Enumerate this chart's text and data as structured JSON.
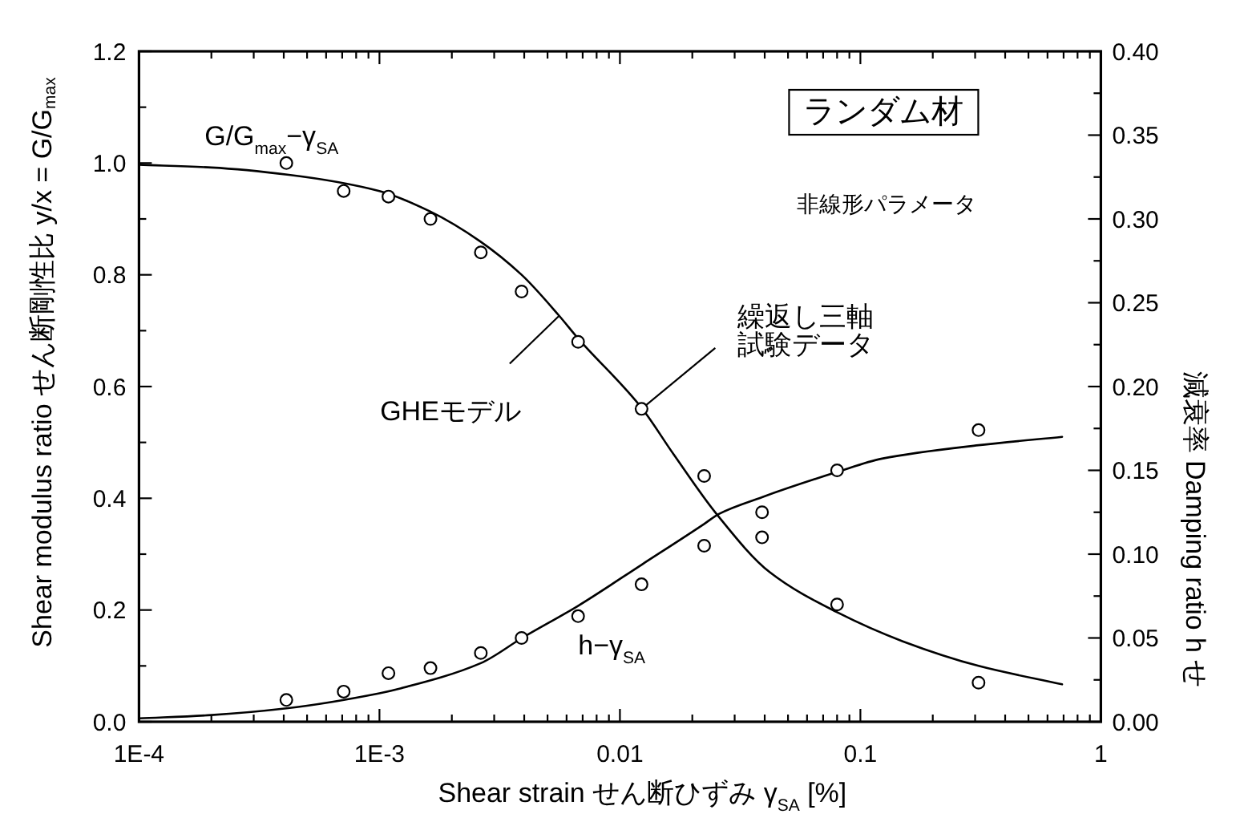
{
  "chart_data": {
    "type": "scatter",
    "title": "ランダム材",
    "subtitle": "非線形パラメータ",
    "xlabel": "Shear strain せん断ひずみ γ$_{SA}$ [%]",
    "ylabel": "Shear modulus ratio せん断剛性比 y/x = G/G$_{max}$",
    "y2label": "減衰率 Damping ratio h せ",
    "log": "x",
    "xlim": [
      0.0001,
      1
    ],
    "xticks": [
      {
        "value": 0.0001,
        "label": "1E-4"
      },
      {
        "value": 0.0002,
        "label": null
      },
      {
        "value": 0.0003,
        "label": null
      },
      {
        "value": 0.0004,
        "label": null
      },
      {
        "value": 0.0005,
        "label": null
      },
      {
        "value": 0.0006,
        "label": null
      },
      {
        "value": 0.0007,
        "label": null
      },
      {
        "value": 0.0008,
        "label": null
      },
      {
        "value": 0.0009,
        "label": null
      },
      {
        "value": 0.001,
        "label": "1E-3"
      },
      {
        "value": 0.002,
        "label": null
      },
      {
        "value": 0.003,
        "label": null
      },
      {
        "value": 0.004,
        "label": null
      },
      {
        "value": 0.005,
        "label": null
      },
      {
        "value": 0.006,
        "label": null
      },
      {
        "value": 0.007,
        "label": null
      },
      {
        "value": 0.008,
        "label": null
      },
      {
        "value": 0.009,
        "label": null
      },
      0.01,
      {
        "value": 0.02,
        "label": null
      },
      {
        "value": 0.03,
        "label": null
      },
      {
        "value": 0.04,
        "label": null
      },
      {
        "value": 0.05,
        "label": null
      },
      {
        "value": 0.06,
        "label": null
      },
      {
        "value": 0.07,
        "label": null
      },
      {
        "value": 0.08,
        "label": null
      },
      {
        "value": 0.09,
        "label": null
      },
      0.1,
      {
        "value": 0.2,
        "label": null
      },
      {
        "value": 0.3,
        "label": null
      },
      {
        "value": 0.4,
        "label": null
      },
      {
        "value": 0.5,
        "label": null
      },
      {
        "value": 0.6,
        "label": null
      },
      {
        "value": 0.7,
        "label": null
      },
      {
        "value": 0.8,
        "label": null
      },
      {
        "value": 0.9,
        "label": null
      },
      1
    ],
    "ylim": [
      0,
      1.2
    ],
    "yticks": [
      {
        "value": 0,
        "label": "0.0"
      },
      {
        "value": 0.1,
        "label": null
      },
      0.2,
      {
        "value": 0.3,
        "label": null
      },
      0.4,
      {
        "value": 0.5,
        "label": null
      },
      0.6,
      {
        "value": 0.7,
        "label": null
      },
      0.8,
      {
        "value": 0.9,
        "label": null
      },
      {
        "value": 1,
        "label": "1.0"
      },
      {
        "value": 1.1,
        "label": null
      },
      1.2
    ],
    "y2lim": [
      0,
      0.4
    ],
    "y2ticks": [
      {
        "value": 0,
        "label": "0.00"
      },
      {
        "value": 0.025,
        "label": null
      },
      0.05,
      {
        "value": 0.075,
        "label": null
      },
      {
        "value": 0.1,
        "label": "0.10"
      },
      {
        "value": 0.125,
        "label": null
      },
      0.15,
      {
        "value": 0.175,
        "label": null
      },
      {
        "value": 0.2,
        "label": "0.20"
      },
      {
        "value": 0.225,
        "label": null
      },
      0.25,
      {
        "value": 0.275,
        "label": null
      },
      {
        "value": 0.3,
        "label": "0.30"
      },
      {
        "value": 0.325,
        "label": null
      },
      0.35,
      {
        "value": 0.375,
        "label": null
      },
      {
        "value": 0.4,
        "label": "0.40"
      }
    ],
    "series": [
      {
        "name": "G/G$_{max}$−γ$_{SA}$",
        "type": "scatter",
        "marker": "circle",
        "color": "#000000",
        "x": [
          0.00041,
          0.00071,
          0.00109,
          0.00163,
          0.00264,
          0.0039,
          0.0067,
          0.0123,
          0.0224,
          0.039,
          0.08,
          0.31
        ],
        "values": [
          1.0,
          0.95,
          0.94,
          0.9,
          0.84,
          0.77,
          0.68,
          0.56,
          0.44,
          0.33,
          0.21,
          0.07
        ]
      },
      {
        "type": "line",
        "color": "#000000",
        "x": [
          0.0001,
          0.0002,
          0.00042,
          0.001,
          0.00163,
          0.00262,
          0.0039,
          0.00558,
          0.00667,
          0.0123,
          0.0167,
          0.0251,
          0.0419,
          0.08,
          0.15,
          0.31,
          0.69
        ],
        "values": [
          0.997,
          0.992,
          0.979,
          0.95,
          0.913,
          0.86,
          0.8,
          0.727,
          0.687,
          0.562,
          0.479,
          0.373,
          0.268,
          0.196,
          0.144,
          0.1,
          0.067
        ]
      },
      {
        "name": "h−γ$_{SA}$",
        "type": "scatter",
        "marker": "circle",
        "color": "#000000",
        "axis": "y2",
        "x": [
          0.00041,
          0.00071,
          0.00109,
          0.00163,
          0.00264,
          0.0039,
          0.0067,
          0.0123,
          0.0224,
          0.039,
          0.08,
          0.31
        ],
        "values": [
          0.013,
          0.018,
          0.029,
          0.032,
          0.041,
          0.05,
          0.063,
          0.082,
          0.105,
          0.125,
          0.15,
          0.174
        ]
      },
      {
        "type": "line",
        "color": "#000000",
        "axis": "y2",
        "x": [
          0.0001,
          0.0002,
          0.00041,
          0.001,
          0.00123,
          0.00264,
          0.00392,
          0.00667,
          0.0124,
          0.0224,
          0.0258,
          0.039,
          0.08,
          0.123,
          0.31,
          0.69
        ],
        "values": [
          0.002,
          0.004,
          0.008,
          0.017,
          0.02,
          0.035,
          0.05,
          0.069,
          0.094,
          0.118,
          0.124,
          0.134,
          0.149,
          0.157,
          0.165,
          0.17
        ]
      }
    ],
    "annotations": [
      {
        "text": "GHEモデル",
        "x": 0.0056,
        "y": 0.727
      },
      {
        "text": "繰返し三軸試験データ",
        "x": 0.0123,
        "y": 0.56
      }
    ]
  }
}
